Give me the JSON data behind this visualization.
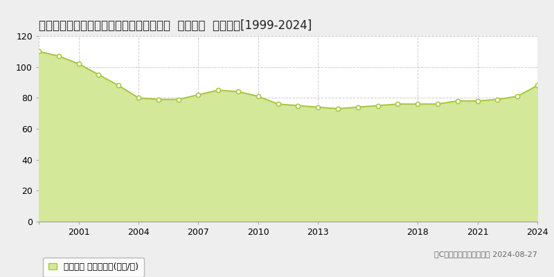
{
  "title": "大阪府大阪市城東区野江２丁目３９番２外  地価公示  地価推移[1999-2024]",
  "years": [
    1999,
    2000,
    2001,
    2002,
    2003,
    2004,
    2005,
    2006,
    2007,
    2008,
    2009,
    2010,
    2011,
    2012,
    2013,
    2014,
    2015,
    2016,
    2017,
    2018,
    2019,
    2020,
    2021,
    2022,
    2023,
    2024
  ],
  "values": [
    110,
    107,
    102,
    95,
    88,
    80,
    79,
    79,
    82,
    85,
    84,
    81,
    76,
    75,
    74,
    73,
    74,
    75,
    76,
    76,
    76,
    78,
    78,
    79,
    81,
    88
  ],
  "line_color": "#a8c840",
  "fill_color": "#d4e89a",
  "marker_facecolor": "#ffffff",
  "marker_edgecolor": "#a8c840",
  "background_color": "#eeeeee",
  "plot_bg_color": "#ffffff",
  "grid_color": "#cccccc",
  "ylim": [
    0,
    120
  ],
  "yticks": [
    0,
    20,
    40,
    60,
    80,
    100,
    120
  ],
  "xtick_positions": [
    1999,
    2001,
    2004,
    2007,
    2010,
    2013,
    2018,
    2021,
    2024
  ],
  "xtick_labels": [
    "",
    "2001",
    "2004",
    "2007",
    "2010",
    "2013",
    "2018",
    "2021",
    "2024"
  ],
  "legend_label": "地価公示 平均嵪単価(万円/嵪)",
  "copyright_text": "（C）土地価格ドットコム 2024-08-27",
  "title_fontsize": 12,
  "axis_fontsize": 9,
  "legend_fontsize": 9,
  "copyright_fontsize": 8
}
